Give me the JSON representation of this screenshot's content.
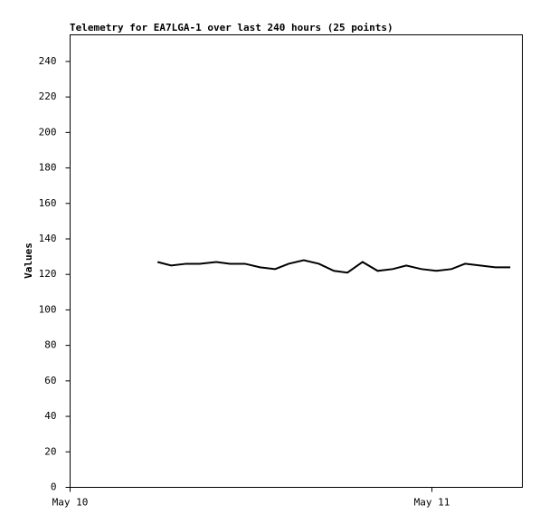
{
  "chart_data": {
    "type": "line",
    "title": "Telemetry for EA7LGA-1 over last 240 hours (25 points)",
    "ylabel": "Values",
    "x": [
      5.8,
      6.7,
      7.7,
      8.6,
      9.7,
      10.6,
      11.6,
      12.6,
      13.6,
      14.5,
      15.5,
      16.5,
      17.5,
      18.4,
      19.4,
      20.4,
      21.4,
      22.3,
      23.3,
      24.3,
      25.3,
      26.2,
      27.2,
      28.2,
      29.2
    ],
    "series": [
      {
        "color": "#000000",
        "values": [
          127,
          125,
          126,
          126,
          127,
          126,
          126,
          124,
          123,
          126,
          128,
          126,
          122,
          121,
          127,
          122,
          123,
          125,
          123,
          122,
          123,
          126,
          125,
          124,
          124
        ]
      }
    ],
    "xlim": [
      0,
      30
    ],
    "xticks": [
      {
        "value": 0,
        "label": "May 10"
      },
      {
        "value": 24,
        "label": "May 11"
      }
    ],
    "ylim": [
      0,
      255
    ],
    "yticks": [
      0,
      20,
      40,
      60,
      80,
      100,
      120,
      140,
      160,
      180,
      200,
      220,
      240
    ],
    "grid": false
  }
}
